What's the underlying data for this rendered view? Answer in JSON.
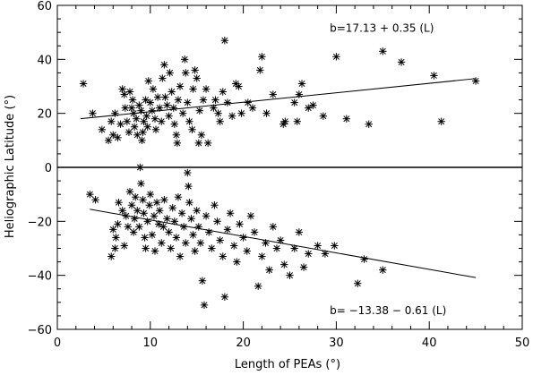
{
  "chart_data": {
    "type": "scatter",
    "xlabel": "Length of PEAs (°)",
    "ylabel": "Heliographic Latitude (°)",
    "xlim": [
      0,
      50
    ],
    "ylim": [
      -60,
      60
    ],
    "x_ticks": [
      0,
      10,
      20,
      30,
      40,
      50
    ],
    "y_ticks": [
      -60,
      -40,
      -20,
      0,
      20,
      40,
      60
    ],
    "zero_line": true,
    "grid": false,
    "legend": "none",
    "marker": "asterisk",
    "annotations": [
      {
        "text": "b=17.13 + 0.35 (L)",
        "x": 29.3,
        "y": 51.5
      },
      {
        "text": "b= −13.38 − 0.61 (L)",
        "x": 29.3,
        "y": -53
      }
    ],
    "fit_lines": [
      {
        "name": "north",
        "intercept": 17.13,
        "slope": 0.35,
        "x_range": [
          2.5,
          45
        ]
      },
      {
        "name": "south",
        "intercept": -13.38,
        "slope": -0.61,
        "x_range": [
          3.5,
          45
        ]
      }
    ],
    "series": [
      {
        "points": [
          [
            2.8,
            31
          ],
          [
            3.8,
            20
          ],
          [
            4.8,
            14
          ],
          [
            5.5,
            10
          ],
          [
            5.8,
            17
          ],
          [
            6,
            12
          ],
          [
            6.2,
            20
          ],
          [
            6.5,
            11
          ],
          [
            6.8,
            16
          ],
          [
            7,
            29
          ],
          [
            7.2,
            27
          ],
          [
            7.3,
            22
          ],
          [
            7.5,
            17
          ],
          [
            7.7,
            13
          ],
          [
            7.8,
            28
          ],
          [
            8,
            22
          ],
          [
            8.1,
            25
          ],
          [
            8.2,
            20
          ],
          [
            8.3,
            15
          ],
          [
            8.5,
            18
          ],
          [
            8.6,
            12
          ],
          [
            8.8,
            23
          ],
          [
            9,
            21
          ],
          [
            9.1,
            10
          ],
          [
            9.2,
            13
          ],
          [
            9.3,
            17
          ],
          [
            9.5,
            25
          ],
          [
            9.6,
            19
          ],
          [
            9.7,
            15
          ],
          [
            9.8,
            32
          ],
          [
            10,
            24
          ],
          [
            10.2,
            21
          ],
          [
            10.3,
            29
          ],
          [
            10.5,
            18
          ],
          [
            10.6,
            14
          ],
          [
            10.8,
            26
          ],
          [
            11,
            22
          ],
          [
            11.2,
            17
          ],
          [
            11.3,
            33
          ],
          [
            11.5,
            38
          ],
          [
            11.6,
            26
          ],
          [
            11.8,
            23
          ],
          [
            12,
            19
          ],
          [
            12.1,
            35
          ],
          [
            12.3,
            28
          ],
          [
            12.5,
            22
          ],
          [
            12.6,
            16
          ],
          [
            12.8,
            12
          ],
          [
            12.9,
            9
          ],
          [
            13,
            25
          ],
          [
            13.2,
            30
          ],
          [
            13.5,
            20
          ],
          [
            13.7,
            40
          ],
          [
            13.8,
            35
          ],
          [
            14,
            24
          ],
          [
            14.2,
            17
          ],
          [
            14.5,
            14
          ],
          [
            14.6,
            29
          ],
          [
            14.8,
            36
          ],
          [
            15,
            33
          ],
          [
            15.2,
            9
          ],
          [
            15.3,
            21
          ],
          [
            15.5,
            12
          ],
          [
            15.7,
            25
          ],
          [
            16,
            29
          ],
          [
            16.2,
            9
          ],
          [
            16.8,
            22
          ],
          [
            17,
            25
          ],
          [
            17.3,
            20
          ],
          [
            17.5,
            17
          ],
          [
            17.8,
            28
          ],
          [
            18,
            47
          ],
          [
            18.3,
            24
          ],
          [
            18.8,
            19
          ],
          [
            19.2,
            31
          ],
          [
            19.5,
            30
          ],
          [
            19.8,
            20
          ],
          [
            20.5,
            24
          ],
          [
            21,
            22
          ],
          [
            21.8,
            36
          ],
          [
            22,
            41
          ],
          [
            22.5,
            20
          ],
          [
            23.2,
            27
          ],
          [
            24.3,
            16
          ],
          [
            24.5,
            17
          ],
          [
            25.5,
            24
          ],
          [
            25.8,
            17
          ],
          [
            26,
            27
          ],
          [
            26.3,
            31
          ],
          [
            27,
            22
          ],
          [
            27.5,
            23
          ],
          [
            28.6,
            19
          ],
          [
            30,
            41
          ],
          [
            31.1,
            18
          ],
          [
            33.5,
            16
          ],
          [
            35,
            43
          ],
          [
            37,
            39
          ],
          [
            40.5,
            34
          ],
          [
            41.3,
            17
          ],
          [
            45,
            32
          ],
          [
            3.5,
            -10
          ],
          [
            4.1,
            -12
          ],
          [
            5.8,
            -33
          ],
          [
            6,
            -23
          ],
          [
            6.2,
            -30
          ],
          [
            6.3,
            -26
          ],
          [
            6.5,
            -21
          ],
          [
            6.6,
            -13
          ],
          [
            7,
            -16
          ],
          [
            7.2,
            -29
          ],
          [
            7.4,
            -18
          ],
          [
            7.6,
            -22
          ],
          [
            7.8,
            -9
          ],
          [
            8,
            -14
          ],
          [
            8.2,
            -24
          ],
          [
            8.3,
            -19
          ],
          [
            8.4,
            -11
          ],
          [
            8.6,
            -16
          ],
          [
            8.8,
            -22
          ],
          [
            8.9,
            0
          ],
          [
            9,
            -6
          ],
          [
            9.2,
            -12
          ],
          [
            9.3,
            -17
          ],
          [
            9.4,
            -26
          ],
          [
            9.5,
            -30
          ],
          [
            9.7,
            -20
          ],
          [
            9.9,
            -14
          ],
          [
            10,
            -10
          ],
          [
            10.2,
            -25
          ],
          [
            10.4,
            -18
          ],
          [
            10.5,
            -31
          ],
          [
            10.7,
            -13
          ],
          [
            10.9,
            -21
          ],
          [
            11,
            -16
          ],
          [
            11.2,
            -28
          ],
          [
            11.4,
            -22
          ],
          [
            11.5,
            -12
          ],
          [
            11.8,
            -19
          ],
          [
            12,
            -24
          ],
          [
            12.2,
            -30
          ],
          [
            12.4,
            -15
          ],
          [
            12.6,
            -20
          ],
          [
            12.8,
            -26
          ],
          [
            13,
            -11
          ],
          [
            13.2,
            -33
          ],
          [
            13.4,
            -17
          ],
          [
            13.6,
            -22
          ],
          [
            13.8,
            -28
          ],
          [
            14,
            -2
          ],
          [
            14.1,
            -7
          ],
          [
            14.2,
            -13
          ],
          [
            14.4,
            -19
          ],
          [
            14.6,
            -25
          ],
          [
            14.8,
            -31
          ],
          [
            15,
            -16
          ],
          [
            15.2,
            -22
          ],
          [
            15.4,
            -28
          ],
          [
            15.6,
            -42
          ],
          [
            15.8,
            -51
          ],
          [
            16,
            -18
          ],
          [
            16.3,
            -24
          ],
          [
            16.6,
            -30
          ],
          [
            16.9,
            -14
          ],
          [
            17.2,
            -20
          ],
          [
            17.5,
            -27
          ],
          [
            17.8,
            -33
          ],
          [
            18,
            -48
          ],
          [
            18.3,
            -23
          ],
          [
            18.6,
            -17
          ],
          [
            19,
            -29
          ],
          [
            19.3,
            -35
          ],
          [
            19.6,
            -21
          ],
          [
            20,
            -26
          ],
          [
            20.4,
            -31
          ],
          [
            20.8,
            -18
          ],
          [
            21.2,
            -24
          ],
          [
            21.6,
            -44
          ],
          [
            22,
            -33
          ],
          [
            22.4,
            -28
          ],
          [
            22.8,
            -38
          ],
          [
            23.2,
            -22
          ],
          [
            23.6,
            -30
          ],
          [
            24,
            -27
          ],
          [
            24.4,
            -36
          ],
          [
            25,
            -40
          ],
          [
            25.5,
            -30
          ],
          [
            26,
            -24
          ],
          [
            26.5,
            -37
          ],
          [
            27,
            -32
          ],
          [
            28,
            -29
          ],
          [
            28.8,
            -32
          ],
          [
            29.8,
            -29
          ],
          [
            32.3,
            -43
          ],
          [
            33,
            -34
          ],
          [
            35,
            -38
          ]
        ]
      }
    ]
  }
}
